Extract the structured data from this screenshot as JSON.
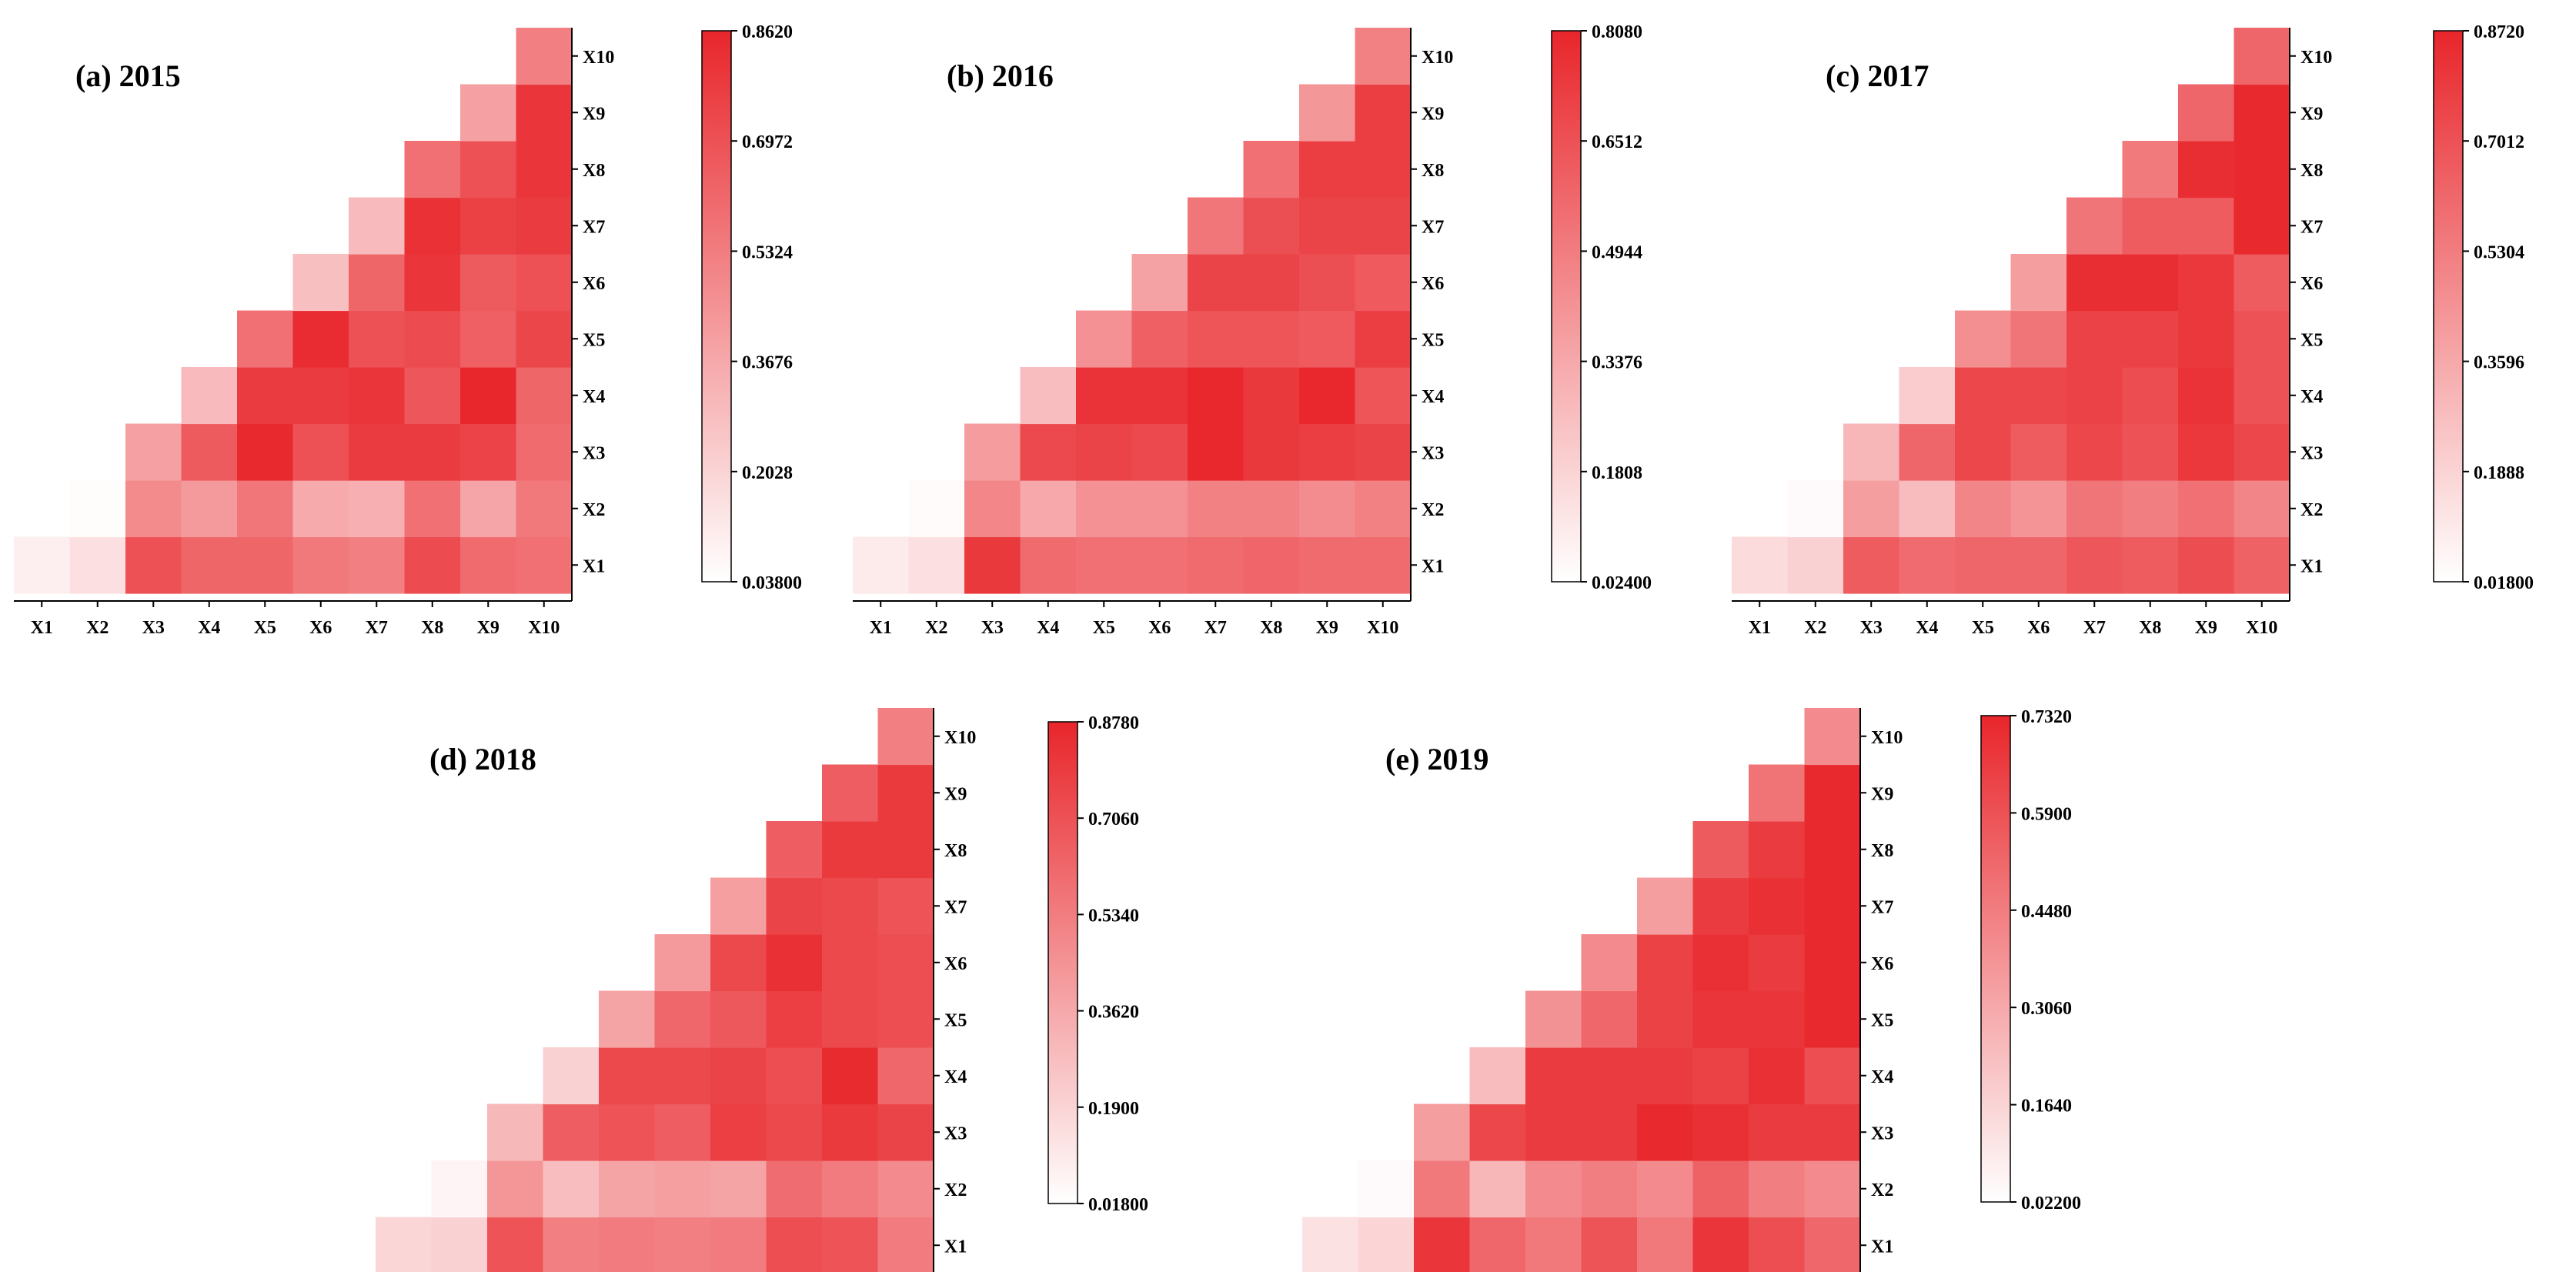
{
  "colors": {
    "low": "#ffffff",
    "high": "#e8262b"
  },
  "chart_data": [
    {
      "type": "heatmap",
      "title": "(a) 2015",
      "labels": [
        "X1",
        "X2",
        "X3",
        "X4",
        "X5",
        "X6",
        "X7",
        "X8",
        "X9",
        "X10"
      ],
      "colorbar_ticks": [
        "0.8620",
        "0.6972",
        "0.5324",
        "0.3676",
        "0.2028",
        "0.03800"
      ],
      "range": [
        0.038,
        0.862
      ],
      "rows": [
        [
          0.1,
          0.16,
          0.7,
          0.62,
          0.62,
          0.55,
          0.52,
          0.72,
          0.6,
          0.58
        ],
        [
          0.05,
          0.48,
          0.42,
          0.56,
          0.36,
          0.34,
          0.58,
          0.38,
          0.55
        ],
        [
          0.4,
          0.66,
          0.85,
          0.7,
          0.78,
          0.78,
          0.75,
          0.6
        ],
        [
          0.3,
          0.78,
          0.78,
          0.8,
          0.68,
          0.86,
          0.62
        ],
        [
          0.58,
          0.84,
          0.7,
          0.72,
          0.64,
          0.74
        ],
        [
          0.28,
          0.62,
          0.8,
          0.66,
          0.7
        ],
        [
          0.3,
          0.82,
          0.76,
          0.78
        ],
        [
          0.58,
          0.7,
          0.8
        ],
        [
          0.4,
          0.8
        ],
        [
          0.52
        ]
      ]
    },
    {
      "type": "heatmap",
      "title": "(b) 2016",
      "labels": [
        "X1",
        "X2",
        "X3",
        "X4",
        "X5",
        "X6",
        "X7",
        "X8",
        "X9",
        "X10"
      ],
      "colorbar_ticks": [
        "0.8080",
        "0.6512",
        "0.4944",
        "0.3376",
        "0.1808",
        "0.02400"
      ],
      "range": [
        0.024,
        0.808
      ],
      "rows": [
        [
          0.1,
          0.14,
          0.74,
          0.56,
          0.54,
          0.54,
          0.56,
          0.58,
          0.56,
          0.56
        ],
        [
          0.04,
          0.46,
          0.34,
          0.42,
          0.42,
          0.48,
          0.48,
          0.44,
          0.48
        ],
        [
          0.38,
          0.68,
          0.7,
          0.68,
          0.8,
          0.74,
          0.72,
          0.7
        ],
        [
          0.26,
          0.76,
          0.76,
          0.8,
          0.74,
          0.8,
          0.64
        ],
        [
          0.42,
          0.6,
          0.64,
          0.64,
          0.62,
          0.72
        ],
        [
          0.36,
          0.7,
          0.7,
          0.66,
          0.62
        ],
        [
          0.52,
          0.66,
          0.7,
          0.7
        ],
        [
          0.54,
          0.72,
          0.72
        ],
        [
          0.4,
          0.72
        ],
        [
          0.48
        ]
      ]
    },
    {
      "type": "heatmap",
      "title": "(c) 2017",
      "labels": [
        "X1",
        "X2",
        "X3",
        "X4",
        "X5",
        "X6",
        "X7",
        "X8",
        "X9",
        "X10"
      ],
      "colorbar_ticks": [
        "0.8720",
        "0.7012",
        "0.5304",
        "0.3596",
        "0.1888",
        "0.01800"
      ],
      "range": [
        0.018,
        0.872
      ],
      "rows": [
        [
          0.16,
          0.2,
          0.66,
          0.6,
          0.62,
          0.62,
          0.68,
          0.66,
          0.72,
          0.64
        ],
        [
          0.04,
          0.4,
          0.28,
          0.5,
          0.44,
          0.56,
          0.52,
          0.58,
          0.5
        ],
        [
          0.3,
          0.62,
          0.74,
          0.66,
          0.74,
          0.7,
          0.8,
          0.74
        ],
        [
          0.22,
          0.74,
          0.74,
          0.76,
          0.72,
          0.82,
          0.7
        ],
        [
          0.46,
          0.56,
          0.76,
          0.76,
          0.8,
          0.7
        ],
        [
          0.4,
          0.84,
          0.84,
          0.8,
          0.66
        ],
        [
          0.56,
          0.66,
          0.66,
          0.86
        ],
        [
          0.54,
          0.84,
          0.86
        ],
        [
          0.62,
          0.86
        ],
        [
          0.62
        ]
      ]
    },
    {
      "type": "heatmap",
      "title": "(d) 2018",
      "labels": [
        "X1",
        "X2",
        "X3",
        "X4",
        "X5",
        "X6",
        "X7",
        "X8",
        "X9",
        "X10"
      ],
      "colorbar_ticks": [
        "0.8780",
        "0.7060",
        "0.5340",
        "0.3620",
        "0.1900",
        "0.01800"
      ],
      "range": [
        0.018,
        0.878
      ],
      "rows": [
        [
          0.18,
          0.2,
          0.7,
          0.52,
          0.54,
          0.52,
          0.54,
          0.72,
          0.7,
          0.54
        ],
        [
          0.06,
          0.44,
          0.28,
          0.38,
          0.4,
          0.38,
          0.6,
          0.54,
          0.48
        ],
        [
          0.3,
          0.66,
          0.7,
          0.66,
          0.78,
          0.74,
          0.8,
          0.76
        ],
        [
          0.2,
          0.74,
          0.74,
          0.76,
          0.72,
          0.86,
          0.62
        ],
        [
          0.38,
          0.62,
          0.68,
          0.78,
          0.74,
          0.72
        ],
        [
          0.42,
          0.74,
          0.84,
          0.74,
          0.72
        ],
        [
          0.4,
          0.76,
          0.74,
          0.7
        ],
        [
          0.66,
          0.8,
          0.8
        ],
        [
          0.66,
          0.8
        ],
        [
          0.52
        ]
      ]
    },
    {
      "type": "heatmap",
      "title": "(e) 2019",
      "labels": [
        "X1",
        "X2",
        "X3",
        "X4",
        "X5",
        "X6",
        "X7",
        "X8",
        "X9",
        "X10"
      ],
      "colorbar_ticks": [
        "0.7320",
        "0.5900",
        "0.4480",
        "0.3060",
        "0.1640",
        "0.02200"
      ],
      "range": [
        0.022,
        0.732
      ],
      "rows": [
        [
          0.12,
          0.16,
          0.68,
          0.52,
          0.46,
          0.58,
          0.46,
          0.68,
          0.6,
          0.52
        ],
        [
          0.04,
          0.46,
          0.26,
          0.4,
          0.44,
          0.4,
          0.54,
          0.44,
          0.4
        ],
        [
          0.34,
          0.62,
          0.66,
          0.66,
          0.72,
          0.7,
          0.66,
          0.66
        ],
        [
          0.24,
          0.66,
          0.66,
          0.66,
          0.64,
          0.7,
          0.6
        ],
        [
          0.38,
          0.52,
          0.64,
          0.68,
          0.68,
          0.72
        ],
        [
          0.4,
          0.64,
          0.7,
          0.66,
          0.72
        ],
        [
          0.34,
          0.66,
          0.7,
          0.72
        ],
        [
          0.56,
          0.66,
          0.72
        ],
        [
          0.48,
          0.72
        ],
        [
          0.4
        ]
      ]
    }
  ]
}
